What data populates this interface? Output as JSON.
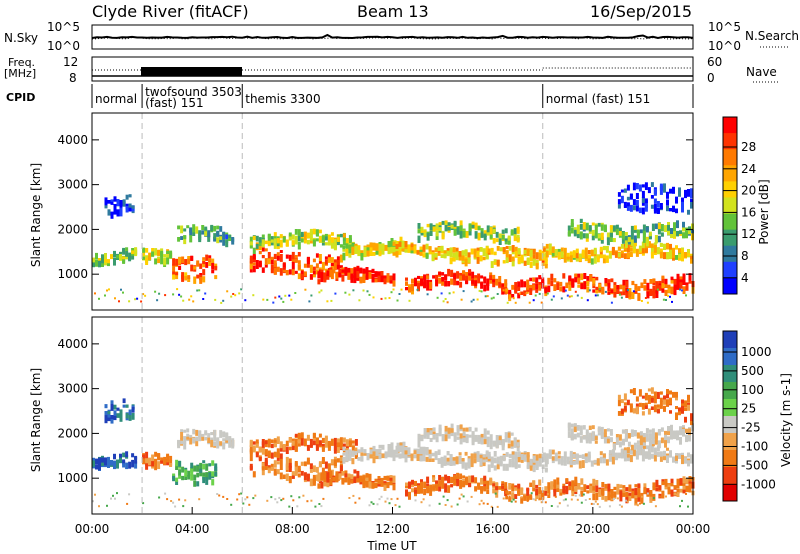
{
  "header": {
    "station": "Clyde River (fitACF)",
    "beam": "Beam 13",
    "date": "16/Sep/2015"
  },
  "chart_data": [
    {
      "type": "line",
      "panel": "noise",
      "left_label": "N.Sky",
      "right_label": "N.Search",
      "left_ticks": [
        "10^5",
        "10^0"
      ],
      "right_ticks": [
        "10^5",
        "10^0"
      ],
      "note": "noise traces"
    },
    {
      "type": "line",
      "panel": "frequency",
      "left_label_1": "Freq.",
      "left_label_2": "[MHz]",
      "right_label": "Nave",
      "left_ticks": [
        "12",
        "8"
      ],
      "right_ticks": [
        "60",
        "0"
      ]
    },
    {
      "type": "table",
      "panel": "cpid",
      "label": "CPID",
      "segments": [
        {
          "start_h": 0,
          "end_h": 2,
          "name": "normal"
        },
        {
          "start_h": 2,
          "end_h": 6,
          "name": "twofsound 3503",
          "name2": "(fast) 151"
        },
        {
          "start_h": 6,
          "end_h": 18,
          "name": "themis 3300"
        },
        {
          "start_h": 18,
          "end_h": 24,
          "name": "normal (fast) 151"
        }
      ]
    },
    {
      "type": "heatmap",
      "panel": "power",
      "ylabel": "Slant Range [km]",
      "yticks": [
        1000,
        2000,
        3000,
        4000
      ],
      "ylim": [
        200,
        4600
      ],
      "colorbar_label": "Power [dB]",
      "colorbar_ticks": [
        "28",
        "24",
        "20",
        "16",
        "12",
        "8",
        "4"
      ],
      "colorbar_colors": [
        "#ff0000",
        "#ff3300",
        "#ff7a00",
        "#ffa500",
        "#ffd000",
        "#d2e21e",
        "#62c33a",
        "#3a9c6e",
        "#2f7a9e",
        "#2040ff",
        "#0000ff"
      ],
      "bands": [
        {
          "t0": 0.0,
          "t1": 1.8,
          "r": 1450,
          "w": 260,
          "level": 0.45
        },
        {
          "t0": 0.5,
          "t1": 1.6,
          "r": 2550,
          "w": 400,
          "level": 0.1
        },
        {
          "t0": 2.0,
          "t1": 3.1,
          "r": 1400,
          "w": 250,
          "level": 0.55
        },
        {
          "t0": 3.2,
          "t1": 5.0,
          "r": 1250,
          "w": 500,
          "level": 0.8
        },
        {
          "t0": 3.4,
          "t1": 5.6,
          "r": 1900,
          "w": 300,
          "level": 0.35
        },
        {
          "t0": 6.3,
          "t1": 10.0,
          "r": 1300,
          "w": 500,
          "level": 0.85
        },
        {
          "t0": 6.3,
          "t1": 10.5,
          "r": 1800,
          "w": 300,
          "level": 0.5
        },
        {
          "t0": 9.0,
          "t1": 12.0,
          "r": 1000,
          "w": 250,
          "level": 0.9
        },
        {
          "t0": 10.0,
          "t1": 12.5,
          "r": 1650,
          "w": 250,
          "level": 0.55
        },
        {
          "t0": 12.0,
          "t1": 15.8,
          "r": 1550,
          "w": 250,
          "level": 0.6
        },
        {
          "t0": 12.5,
          "t1": 16.5,
          "r": 900,
          "w": 300,
          "level": 0.9
        },
        {
          "t0": 13.0,
          "t1": 17.0,
          "r": 2000,
          "w": 300,
          "level": 0.45
        },
        {
          "t0": 15.8,
          "t1": 18.2,
          "r": 1400,
          "w": 350,
          "level": 0.65
        },
        {
          "t0": 16.5,
          "t1": 24.0,
          "r": 800,
          "w": 350,
          "level": 0.85
        },
        {
          "t0": 18.0,
          "t1": 24.0,
          "r": 1550,
          "w": 250,
          "level": 0.6
        },
        {
          "t0": 19.0,
          "t1": 24.0,
          "r": 2000,
          "w": 350,
          "level": 0.4
        },
        {
          "t0": 21.0,
          "t1": 24.0,
          "r": 2700,
          "w": 600,
          "level": 0.1
        }
      ]
    },
    {
      "type": "heatmap",
      "panel": "velocity",
      "ylabel": "Slant Range [km]",
      "yticks": [
        1000,
        2000,
        3000,
        4000
      ],
      "ylim": [
        200,
        4600
      ],
      "colorbar_label": "Velocity [m s-1]",
      "colorbar_ticks": [
        "1000",
        "500",
        "100",
        "25",
        "-25",
        "-100",
        "-500",
        "-1000"
      ],
      "colorbar_colors": [
        "#1f3fb8",
        "#2f6cc7",
        "#2f8e7a",
        "#46a84b",
        "#6cd24a",
        "#c9c9c4",
        "#f0a24a",
        "#f07a15",
        "#ee3e10",
        "#e10000"
      ],
      "bands": [
        {
          "t0": 0.0,
          "t1": 1.8,
          "r": 1450,
          "w": 260,
          "v": "blue"
        },
        {
          "t0": 0.5,
          "t1": 1.6,
          "r": 2550,
          "w": 400,
          "v": "blue"
        },
        {
          "t0": 2.0,
          "t1": 3.1,
          "r": 1400,
          "w": 250,
          "v": "orange"
        },
        {
          "t0": 3.2,
          "t1": 5.0,
          "r": 1250,
          "w": 500,
          "v": "green"
        },
        {
          "t0": 3.4,
          "t1": 5.6,
          "r": 1900,
          "w": 300,
          "v": "grey"
        },
        {
          "t0": 6.3,
          "t1": 10.0,
          "r": 1300,
          "w": 500,
          "v": "orange"
        },
        {
          "t0": 6.3,
          "t1": 10.5,
          "r": 1800,
          "w": 300,
          "v": "orange"
        },
        {
          "t0": 9.0,
          "t1": 12.0,
          "r": 1000,
          "w": 250,
          "v": "orange"
        },
        {
          "t0": 10.0,
          "t1": 12.5,
          "r": 1650,
          "w": 250,
          "v": "grey"
        },
        {
          "t0": 12.0,
          "t1": 15.8,
          "r": 1550,
          "w": 250,
          "v": "grey"
        },
        {
          "t0": 12.5,
          "t1": 16.5,
          "r": 900,
          "w": 300,
          "v": "orange"
        },
        {
          "t0": 13.0,
          "t1": 17.0,
          "r": 2000,
          "w": 300,
          "v": "grey"
        },
        {
          "t0": 15.8,
          "t1": 18.2,
          "r": 1400,
          "w": 350,
          "v": "grey"
        },
        {
          "t0": 16.5,
          "t1": 24.0,
          "r": 800,
          "w": 350,
          "v": "orange"
        },
        {
          "t0": 18.0,
          "t1": 24.0,
          "r": 1550,
          "w": 250,
          "v": "grey"
        },
        {
          "t0": 19.0,
          "t1": 24.0,
          "r": 2000,
          "w": 350,
          "v": "grey"
        },
        {
          "t0": 21.0,
          "t1": 24.0,
          "r": 2700,
          "w": 600,
          "v": "orange"
        }
      ]
    }
  ],
  "xaxis": {
    "label": "Time UT",
    "ticks": [
      "00:00",
      "04:00",
      "08:00",
      "12:00",
      "16:00",
      "20:00",
      "00:00"
    ]
  }
}
